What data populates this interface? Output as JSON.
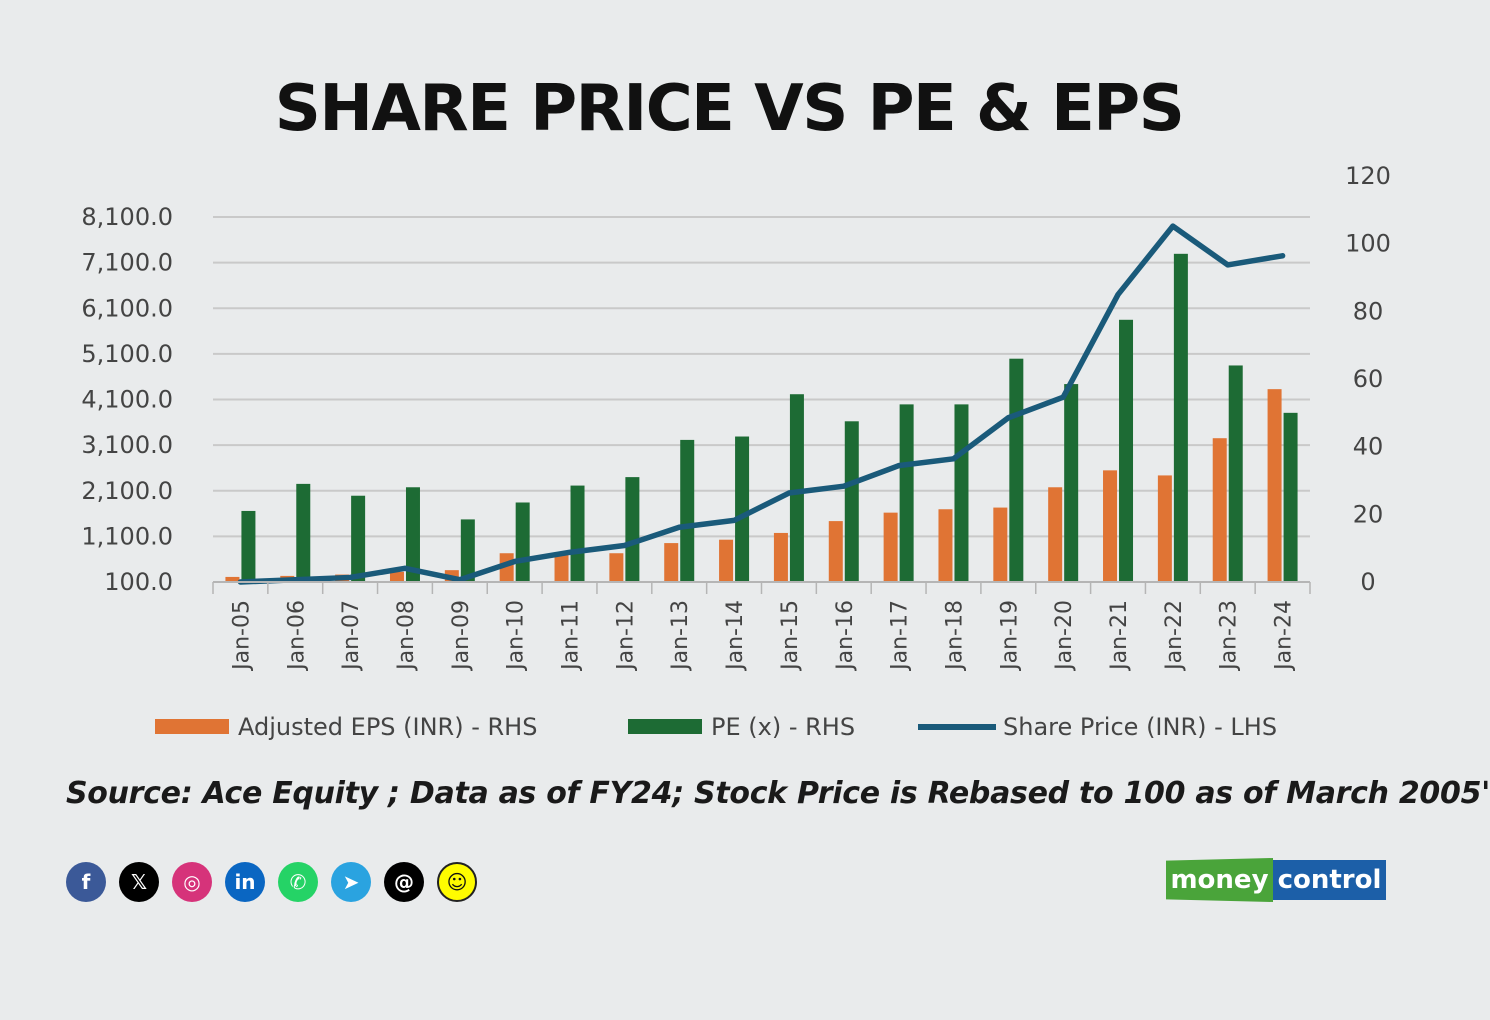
{
  "title": "SHARE PRICE VS PE & EPS",
  "source": "Source: Ace Equity ; Data as of FY24; Stock Price is Rebased to 100 as of March  2005'",
  "colors": {
    "eps": "#e07434",
    "pe": "#1d6b34",
    "price": "#1a5a7a",
    "grid": "#c9c9c9",
    "background": "#e9ebec"
  },
  "socials": [
    {
      "icon": "facebook-icon",
      "glyph": "f",
      "color": "#3b5998"
    },
    {
      "icon": "x-icon",
      "glyph": "𝕏",
      "color": "#000000"
    },
    {
      "icon": "instagram-icon",
      "glyph": "◎",
      "color": "#d6337a"
    },
    {
      "icon": "linkedin-icon",
      "glyph": "in",
      "color": "#0a66c2"
    },
    {
      "icon": "whatsapp-icon",
      "glyph": "✆",
      "color": "#25d366"
    },
    {
      "icon": "telegram-icon",
      "glyph": "➤",
      "color": "#2aa3e0"
    },
    {
      "icon": "threads-icon",
      "glyph": "@",
      "color": "#000000"
    },
    {
      "icon": "snapchat-icon",
      "glyph": "☺",
      "color": "#fffc00"
    }
  ],
  "logo": {
    "part1": "money",
    "part2": "control"
  },
  "chart_data": {
    "type": "bar",
    "categories": [
      "Jan-05",
      "Jan-06",
      "Jan-07",
      "Jan-08",
      "Jan-09",
      "Jan-10",
      "Jan-11",
      "Jan-12",
      "Jan-13",
      "Jan-14",
      "Jan-15",
      "Jan-16",
      "Jan-17",
      "Jan-18",
      "Jan-19",
      "Jan-20",
      "Jan-21",
      "Jan-22",
      "Jan-23",
      "Jan-24"
    ],
    "left_axis": {
      "ylim": [
        100,
        8100
      ],
      "ticks": [
        "100.0",
        "1,100.0",
        "2,100.0",
        "3,100.0",
        "4,100.0",
        "5,100.0",
        "6,100.0",
        "7,100.0",
        "8,100.0"
      ],
      "tick_values": [
        100,
        1100,
        2100,
        3100,
        4100,
        5100,
        6100,
        7100,
        8100
      ]
    },
    "right_axis": {
      "ylim": [
        0,
        120
      ],
      "ticks": [
        "0",
        "20",
        "40",
        "60",
        "80",
        "100",
        "120"
      ],
      "tick_values": [
        0,
        20,
        40,
        60,
        80,
        100,
        120
      ]
    },
    "grid": true,
    "legend_position": "bottom",
    "series": [
      {
        "name": "Adjusted EPS (INR) - RHS",
        "type": "bar",
        "axis": "right",
        "values": [
          1.5,
          1.8,
          2.2,
          3,
          3.5,
          8.5,
          8.5,
          8.5,
          11.5,
          12.5,
          14.5,
          18,
          20.5,
          21.5,
          22,
          28,
          33,
          31.5,
          42.5,
          57
        ]
      },
      {
        "name": "PE (x) - RHS",
        "type": "bar",
        "axis": "right",
        "values": [
          21,
          29,
          25.5,
          28,
          18.5,
          23.5,
          28.5,
          31,
          42,
          43,
          55.5,
          47.5,
          52.5,
          52.5,
          66,
          58.5,
          77.5,
          97,
          64,
          50
        ]
      },
      {
        "name": "Share Price (INR) - LHS",
        "type": "line",
        "axis": "left",
        "values": [
          100,
          150,
          200,
          400,
          150,
          550,
          750,
          900,
          1300,
          1450,
          2050,
          2200,
          2650,
          2800,
          3700,
          4150,
          6400,
          7900,
          7050,
          7250
        ]
      }
    ]
  }
}
